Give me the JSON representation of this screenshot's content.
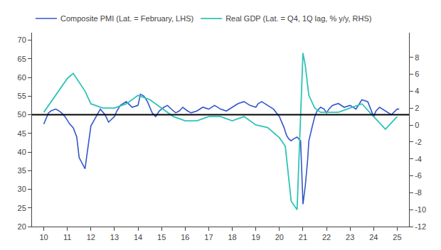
{
  "chart_data": {
    "type": "line",
    "series": [
      {
        "name": "Composite PMI (Lat. = February, LHS)",
        "color": "#3355cc",
        "axis": "y",
        "x": [
          10.0,
          10.1,
          10.2,
          10.3,
          10.5,
          10.6,
          10.75,
          10.9,
          11.0,
          11.1,
          11.25,
          11.4,
          11.5,
          11.75,
          12.0,
          12.25,
          12.4,
          12.6,
          12.75,
          13.0,
          13.1,
          13.25,
          13.5,
          13.75,
          14.0,
          14.1,
          14.25,
          14.4,
          14.5,
          14.6,
          14.75,
          14.9,
          15.0,
          15.1,
          15.25,
          15.4,
          15.5,
          15.6,
          15.75,
          15.9,
          16.0,
          16.1,
          16.25,
          16.5,
          16.75,
          17.0,
          17.25,
          17.5,
          17.75,
          18.0,
          18.25,
          18.5,
          18.75,
          19.0,
          19.1,
          19.25,
          19.5,
          19.75,
          20.0,
          20.1,
          20.2,
          20.3,
          20.4,
          20.5,
          20.6,
          20.75,
          20.9,
          21.0,
          21.1,
          21.2,
          21.25,
          21.4,
          21.5,
          21.6,
          21.75,
          21.9,
          22.0,
          22.1,
          22.25,
          22.5,
          22.75,
          23.0,
          23.25,
          23.5,
          23.75,
          24.0,
          24.1,
          24.25,
          24.5,
          24.75,
          25.0,
          25.083
        ],
        "values": [
          47.5,
          49.0,
          50.5,
          51.0,
          51.5,
          51.2,
          50.5,
          49.5,
          48.5,
          47.5,
          46.5,
          44.0,
          38.5,
          35.5,
          47.0,
          50.0,
          51.5,
          50.0,
          48.0,
          49.5,
          51.0,
          52.5,
          53.5,
          52.0,
          52.5,
          55.5,
          55.0,
          53.5,
          52.0,
          50.5,
          49.5,
          51.0,
          51.5,
          52.0,
          52.5,
          51.5,
          51.0,
          50.5,
          51.0,
          52.0,
          51.5,
          51.0,
          50.5,
          51.0,
          52.0,
          51.5,
          52.5,
          51.5,
          51.0,
          52.0,
          53.0,
          53.5,
          52.5,
          52.0,
          53.0,
          53.5,
          52.5,
          51.5,
          49.5,
          48.0,
          46.5,
          44.5,
          43.5,
          43.0,
          43.5,
          44.0,
          43.0,
          26.0,
          31.0,
          38.0,
          43.0,
          47.0,
          49.5,
          51.0,
          52.0,
          51.5,
          50.5,
          51.5,
          52.5,
          53.0,
          52.0,
          52.5,
          51.5,
          54.0,
          53.5,
          49.5,
          51.0,
          52.0,
          51.0,
          50.0,
          51.5,
          51.5
        ]
      },
      {
        "name": "Real GDP (Lat. = Q4, 1Q lag, % y/y, RHS)",
        "color": "#2ec4b6",
        "axis": "y2",
        "x": [
          10.0,
          10.5,
          10.75,
          11.0,
          11.25,
          11.5,
          11.75,
          12.0,
          12.5,
          13.0,
          13.5,
          14.0,
          14.5,
          15.0,
          15.5,
          16.0,
          16.5,
          17.0,
          17.5,
          18.0,
          18.5,
          19.0,
          19.5,
          20.0,
          20.25,
          20.5,
          20.75,
          21.0,
          21.1,
          21.25,
          21.5,
          21.75,
          22.0,
          22.5,
          23.0,
          23.5,
          24.0,
          24.5,
          25.0
        ],
        "values": [
          1.5,
          3.5,
          4.5,
          5.5,
          6.1,
          5.0,
          4.0,
          2.5,
          2.0,
          2.0,
          2.5,
          3.5,
          3.0,
          2.0,
          1.0,
          0.5,
          0.5,
          1.0,
          1.0,
          0.5,
          1.0,
          0.0,
          -0.3,
          -1.5,
          -2.5,
          -9.0,
          -10.0,
          8.5,
          7.0,
          3.5,
          2.0,
          1.5,
          1.5,
          1.5,
          2.0,
          2.5,
          1.0,
          -0.5,
          1.0
        ]
      }
    ],
    "hline": {
      "value": 50.0,
      "color": "#000000"
    },
    "xlim": [
      9.5,
      25.5
    ],
    "xticks": [
      10,
      11,
      12,
      13,
      14,
      15,
      16,
      17,
      18,
      19,
      20,
      21,
      22,
      23,
      24,
      25
    ],
    "ylim": [
      20,
      72
    ],
    "yticks": [
      20,
      25,
      30,
      35,
      40,
      45,
      50,
      55,
      60,
      65,
      70
    ],
    "y2lim": [
      -12,
      10.909
    ],
    "y2ticks": [
      -12,
      -10,
      -8,
      -6,
      -4,
      -2,
      0,
      2,
      4,
      6,
      8
    ],
    "grid": false,
    "legend": "upper left"
  }
}
